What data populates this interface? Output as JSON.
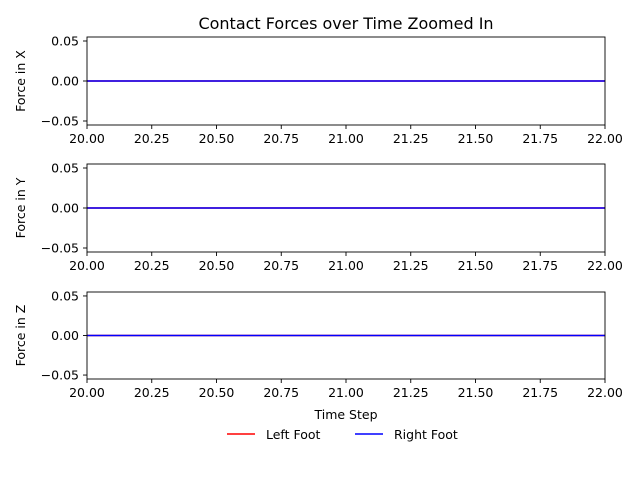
{
  "chart_data": {
    "type": "line",
    "title": "Contact Forces over Time Zoomed In",
    "xlabel": "Time Step",
    "xlim": [
      20.0,
      22.0
    ],
    "x_ticks": [
      "20.00",
      "20.25",
      "20.50",
      "20.75",
      "21.00",
      "21.25",
      "21.50",
      "21.75",
      "22.00"
    ],
    "x_tick_values": [
      20.0,
      20.25,
      20.5,
      20.75,
      21.0,
      21.25,
      21.5,
      21.75,
      22.0
    ],
    "legend": {
      "placement": "bottom-center",
      "entries": [
        {
          "name": "Left Foot",
          "color": "#ff0000"
        },
        {
          "name": "Right Foot",
          "color": "#0000ff"
        }
      ]
    },
    "subplots": [
      {
        "ylabel": "Force in X",
        "ylim": [
          -0.055,
          0.055
        ],
        "y_ticks": [
          "0.05",
          "0.00",
          "−0.05"
        ],
        "y_tick_values": [
          0.05,
          0.0,
          -0.05
        ],
        "grid": false,
        "series": [
          {
            "name": "Left Foot",
            "color": "#ff0000",
            "x": [
              20.0,
              22.0
            ],
            "y": [
              0.0,
              0.0
            ]
          },
          {
            "name": "Right Foot",
            "color": "#0000ff",
            "x": [
              20.0,
              22.0
            ],
            "y": [
              0.0,
              0.0
            ]
          }
        ]
      },
      {
        "ylabel": "Force in Y",
        "ylim": [
          -0.055,
          0.055
        ],
        "y_ticks": [
          "0.05",
          "0.00",
          "−0.05"
        ],
        "y_tick_values": [
          0.05,
          0.0,
          -0.05
        ],
        "grid": false,
        "series": [
          {
            "name": "Left Foot",
            "color": "#ff0000",
            "x": [
              20.0,
              22.0
            ],
            "y": [
              0.0,
              0.0
            ]
          },
          {
            "name": "Right Foot",
            "color": "#0000ff",
            "x": [
              20.0,
              22.0
            ],
            "y": [
              0.0,
              0.0
            ]
          }
        ]
      },
      {
        "ylabel": "Force in Z",
        "ylim": [
          -0.055,
          0.055
        ],
        "y_ticks": [
          "0.05",
          "0.00",
          "−0.05"
        ],
        "y_tick_values": [
          0.05,
          0.0,
          -0.05
        ],
        "grid": false,
        "series": [
          {
            "name": "Left Foot",
            "color": "#ff0000",
            "x": [
              20.0,
              22.0
            ],
            "y": [
              0.0,
              0.0
            ]
          },
          {
            "name": "Right Foot",
            "color": "#0000ff",
            "x": [
              20.0,
              22.0
            ],
            "y": [
              0.0,
              0.0
            ]
          }
        ]
      }
    ]
  }
}
